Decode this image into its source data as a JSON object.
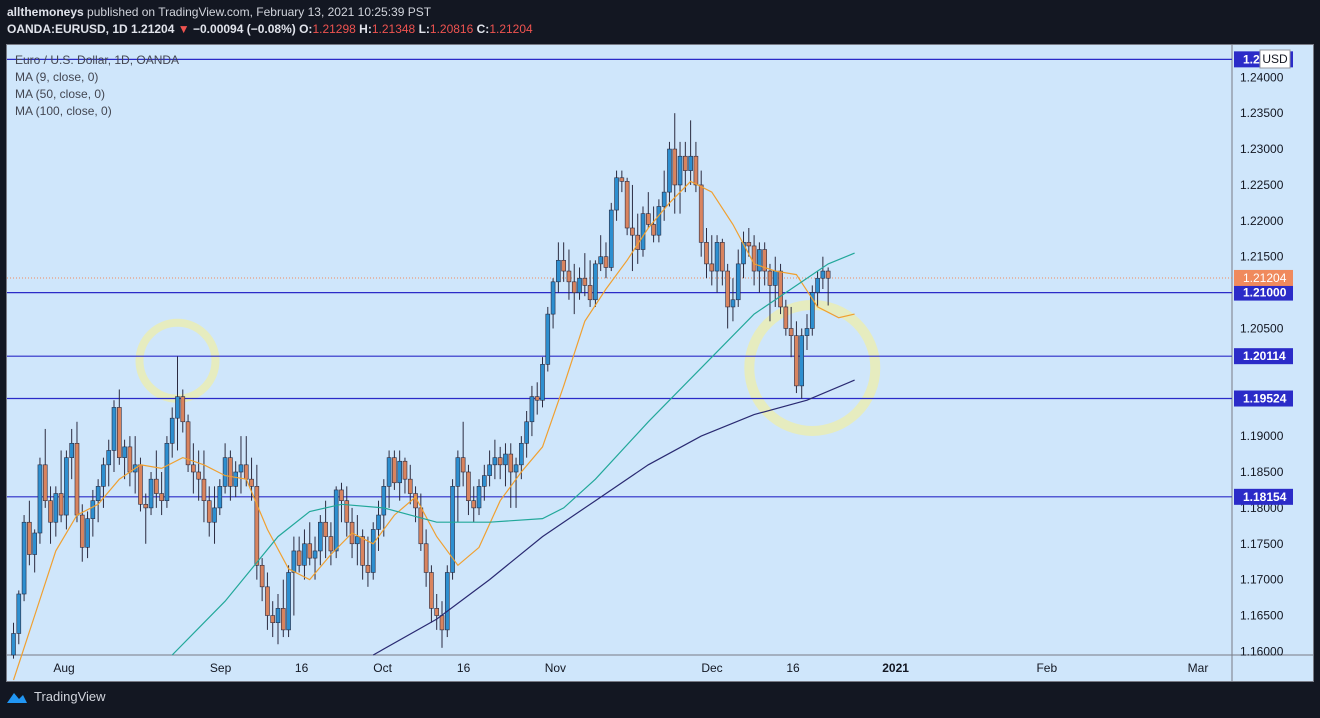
{
  "header": {
    "author": "allthemoneys",
    "published": "published on TradingView.com, February 13, 2021 10:25:39 PST",
    "symbol": "OANDA:EURUSD, 1D",
    "last": "1.21204",
    "change_arrow": "▼",
    "change": "−0.00094 (−0.08%)",
    "o_label": "O:",
    "o_value": "1.21298",
    "h_label": "H:",
    "h_value": "1.21348",
    "l_label": "L:",
    "l_value": "1.20816",
    "c_label": "C:",
    "c_value": "1.21204"
  },
  "legend": {
    "title": "Euro / U.S. Dollar, 1D, OANDA",
    "ma1": "MA (9, close, 0)",
    "ma2": "MA (50, close, 0)",
    "ma3": "MA (100, close, 0)"
  },
  "footer": {
    "brand": "TradingView"
  },
  "colors": {
    "background": "#131722",
    "plot_background": "#cfe6fb",
    "bull": "#2d8fd0",
    "bear": "#d9845f",
    "ma9": "#f0a030",
    "ma50": "#22a89a",
    "ma100": "#2a2a72",
    "level_line": "#2b2bc8",
    "highlight_circle": "#e6ecbf"
  },
  "chart_data": {
    "type": "candlestick",
    "title": "Euro / U.S. Dollar, 1D, OANDA",
    "currency_label": "USD",
    "ylim": [
      1.1595,
      1.2445
    ],
    "y_ticks": [
      "1.24000",
      "1.23500",
      "1.23000",
      "1.22500",
      "1.22000",
      "1.21500",
      "1.20500",
      "1.19000",
      "1.18500",
      "1.18000",
      "1.17500",
      "1.17000",
      "1.16500",
      "1.16000"
    ],
    "x_ticks": [
      {
        "label": "Aug",
        "date": "2020-08-03"
      },
      {
        "label": "Sep",
        "date": "2020-09-01"
      },
      {
        "label": "16",
        "date": "2020-09-16"
      },
      {
        "label": "Oct",
        "date": "2020-10-01"
      },
      {
        "label": "16",
        "date": "2020-10-16"
      },
      {
        "label": "Nov",
        "date": "2020-11-02"
      },
      {
        "label": "Dec",
        "date": "2020-12-01"
      },
      {
        "label": "16",
        "date": "2020-12-16"
      },
      {
        "label": "2021",
        "date": "2021-01-04"
      },
      {
        "label": "Feb",
        "date": "2021-02-01"
      },
      {
        "label": "Mar",
        "date": "2021-03-01"
      }
    ],
    "horizontal_levels": [
      {
        "value": 1.2425,
        "label": "1.2"
      },
      {
        "value": 1.21,
        "label": "1.21000"
      },
      {
        "value": 1.20114,
        "label": "1.20114"
      },
      {
        "value": 1.19524,
        "label": "1.19524"
      },
      {
        "value": 1.18154,
        "label": "1.18154"
      }
    ],
    "last_price": {
      "value": 1.21204,
      "label": "1.21204"
    },
    "candles": [
      [
        1.1595,
        1.164,
        1.159,
        1.1625
      ],
      [
        1.1625,
        1.1685,
        1.161,
        1.168
      ],
      [
        1.168,
        1.179,
        1.167,
        1.178
      ],
      [
        1.178,
        1.181,
        1.172,
        1.1735
      ],
      [
        1.1735,
        1.177,
        1.171,
        1.1765
      ],
      [
        1.1765,
        1.187,
        1.175,
        1.186
      ],
      [
        1.186,
        1.191,
        1.18,
        1.181
      ],
      [
        1.181,
        1.183,
        1.175,
        1.178
      ],
      [
        1.178,
        1.183,
        1.176,
        1.182
      ],
      [
        1.182,
        1.188,
        1.178,
        1.179
      ],
      [
        1.179,
        1.188,
        1.177,
        1.187
      ],
      [
        1.187,
        1.191,
        1.184,
        1.189
      ],
      [
        1.189,
        1.192,
        1.178,
        1.179
      ],
      [
        1.179,
        1.1805,
        1.1725,
        1.1745
      ],
      [
        1.1745,
        1.1795,
        1.173,
        1.1785
      ],
      [
        1.1785,
        1.1825,
        1.176,
        1.181
      ],
      [
        1.181,
        1.184,
        1.178,
        1.183
      ],
      [
        1.183,
        1.187,
        1.18,
        1.186
      ],
      [
        1.186,
        1.1895,
        1.183,
        1.188
      ],
      [
        1.188,
        1.195,
        1.185,
        1.194
      ],
      [
        1.194,
        1.1965,
        1.186,
        1.187
      ],
      [
        1.187,
        1.1895,
        1.184,
        1.1885
      ],
      [
        1.1885,
        1.19,
        1.183,
        1.185
      ],
      [
        1.185,
        1.19,
        1.182,
        1.186
      ],
      [
        1.186,
        1.187,
        1.1795,
        1.1805
      ],
      [
        1.1805,
        1.182,
        1.175,
        1.18
      ],
      [
        1.18,
        1.185,
        1.179,
        1.184
      ],
      [
        1.184,
        1.188,
        1.18,
        1.182
      ],
      [
        1.182,
        1.185,
        1.179,
        1.181
      ],
      [
        1.181,
        1.19,
        1.18,
        1.189
      ],
      [
        1.189,
        1.194,
        1.187,
        1.1925
      ],
      [
        1.1925,
        1.2011,
        1.188,
        1.1955
      ],
      [
        1.1955,
        1.1965,
        1.1905,
        1.192
      ],
      [
        1.192,
        1.193,
        1.185,
        1.186
      ],
      [
        1.186,
        1.189,
        1.182,
        1.185
      ],
      [
        1.185,
        1.188,
        1.181,
        1.184
      ],
      [
        1.184,
        1.188,
        1.178,
        1.181
      ],
      [
        1.181,
        1.183,
        1.176,
        1.178
      ],
      [
        1.178,
        1.183,
        1.175,
        1.18
      ],
      [
        1.18,
        1.184,
        1.179,
        1.183
      ],
      [
        1.183,
        1.189,
        1.182,
        1.187
      ],
      [
        1.187,
        1.188,
        1.181,
        1.183
      ],
      [
        1.183,
        1.1865,
        1.1815,
        1.185
      ],
      [
        1.185,
        1.19,
        1.182,
        1.186
      ],
      [
        1.186,
        1.19,
        1.183,
        1.184
      ],
      [
        1.184,
        1.187,
        1.181,
        1.183
      ],
      [
        1.183,
        1.186,
        1.17,
        1.172
      ],
      [
        1.172,
        1.173,
        1.167,
        1.169
      ],
      [
        1.169,
        1.171,
        1.163,
        1.165
      ],
      [
        1.165,
        1.167,
        1.162,
        1.164
      ],
      [
        1.164,
        1.168,
        1.161,
        1.166
      ],
      [
        1.166,
        1.17,
        1.162,
        1.163
      ],
      [
        1.163,
        1.172,
        1.162,
        1.171
      ],
      [
        1.171,
        1.176,
        1.165,
        1.174
      ],
      [
        1.174,
        1.176,
        1.171,
        1.172
      ],
      [
        1.172,
        1.177,
        1.17,
        1.175
      ],
      [
        1.175,
        1.178,
        1.172,
        1.173
      ],
      [
        1.173,
        1.176,
        1.17,
        1.174
      ],
      [
        1.174,
        1.179,
        1.172,
        1.178
      ],
      [
        1.178,
        1.181,
        1.173,
        1.176
      ],
      [
        1.176,
        1.178,
        1.172,
        1.174
      ],
      [
        1.174,
        1.183,
        1.173,
        1.1825
      ],
      [
        1.1825,
        1.1835,
        1.178,
        1.181
      ],
      [
        1.181,
        1.183,
        1.176,
        1.178
      ],
      [
        1.178,
        1.18,
        1.173,
        1.175
      ],
      [
        1.175,
        1.179,
        1.172,
        1.176
      ],
      [
        1.176,
        1.177,
        1.17,
        1.172
      ],
      [
        1.172,
        1.176,
        1.169,
        1.171
      ],
      [
        1.171,
        1.178,
        1.17,
        1.177
      ],
      [
        1.177,
        1.181,
        1.174,
        1.179
      ],
      [
        1.179,
        1.184,
        1.176,
        1.183
      ],
      [
        1.183,
        1.188,
        1.18,
        1.187
      ],
      [
        1.187,
        1.188,
        1.1825,
        1.1835
      ],
      [
        1.1835,
        1.188,
        1.181,
        1.1865
      ],
      [
        1.1865,
        1.187,
        1.182,
        1.184
      ],
      [
        1.184,
        1.186,
        1.1805,
        1.182
      ],
      [
        1.182,
        1.183,
        1.178,
        1.18
      ],
      [
        1.18,
        1.182,
        1.174,
        1.175
      ],
      [
        1.175,
        1.177,
        1.169,
        1.171
      ],
      [
        1.171,
        1.172,
        1.164,
        1.166
      ],
      [
        1.166,
        1.168,
        1.163,
        1.165
      ],
      [
        1.165,
        1.167,
        1.1605,
        1.163
      ],
      [
        1.163,
        1.172,
        1.162,
        1.171
      ],
      [
        1.171,
        1.184,
        1.17,
        1.183
      ],
      [
        1.183,
        1.188,
        1.178,
        1.187
      ],
      [
        1.187,
        1.192,
        1.183,
        1.185
      ],
      [
        1.185,
        1.186,
        1.179,
        1.181
      ],
      [
        1.181,
        1.183,
        1.178,
        1.18
      ],
      [
        1.18,
        1.184,
        1.179,
        1.183
      ],
      [
        1.183,
        1.186,
        1.181,
        1.1845
      ],
      [
        1.1845,
        1.188,
        1.183,
        1.186
      ],
      [
        1.186,
        1.1895,
        1.184,
        1.187
      ],
      [
        1.187,
        1.1885,
        1.184,
        1.186
      ],
      [
        1.186,
        1.189,
        1.183,
        1.1875
      ],
      [
        1.1875,
        1.189,
        1.18,
        1.185
      ],
      [
        1.185,
        1.187,
        1.18,
        1.186
      ],
      [
        1.186,
        1.19,
        1.184,
        1.189
      ],
      [
        1.189,
        1.1935,
        1.187,
        1.192
      ],
      [
        1.192,
        1.197,
        1.19,
        1.1955
      ],
      [
        1.1955,
        1.1975,
        1.193,
        1.195
      ],
      [
        1.195,
        1.201,
        1.194,
        1.2
      ],
      [
        1.2,
        1.208,
        1.199,
        1.207
      ],
      [
        1.207,
        1.212,
        1.205,
        1.2115
      ],
      [
        1.2115,
        1.217,
        1.21,
        1.2145
      ],
      [
        1.2145,
        1.217,
        1.2115,
        1.213
      ],
      [
        1.213,
        1.216,
        1.209,
        1.2115
      ],
      [
        1.2115,
        1.214,
        1.207,
        1.21
      ],
      [
        1.21,
        1.2135,
        1.209,
        1.212
      ],
      [
        1.212,
        1.2155,
        1.2095,
        1.211
      ],
      [
        1.211,
        1.2145,
        1.208,
        1.209
      ],
      [
        1.209,
        1.2145,
        1.208,
        1.214
      ],
      [
        1.214,
        1.218,
        1.213,
        1.215
      ],
      [
        1.215,
        1.217,
        1.212,
        1.2135
      ],
      [
        1.2135,
        1.2225,
        1.213,
        1.2215
      ],
      [
        1.2215,
        1.227,
        1.22,
        1.226
      ],
      [
        1.226,
        1.227,
        1.224,
        1.2255
      ],
      [
        1.2255,
        1.226,
        1.218,
        1.219
      ],
      [
        1.219,
        1.225,
        1.213,
        1.218
      ],
      [
        1.218,
        1.221,
        1.214,
        1.216
      ],
      [
        1.216,
        1.222,
        1.215,
        1.221
      ],
      [
        1.221,
        1.224,
        1.219,
        1.2195
      ],
      [
        1.2195,
        1.222,
        1.217,
        1.218
      ],
      [
        1.218,
        1.223,
        1.217,
        1.222
      ],
      [
        1.222,
        1.227,
        1.22,
        1.224
      ],
      [
        1.224,
        1.231,
        1.222,
        1.23
      ],
      [
        1.23,
        1.235,
        1.221,
        1.225
      ],
      [
        1.225,
        1.231,
        1.221,
        1.229
      ],
      [
        1.229,
        1.231,
        1.224,
        1.227
      ],
      [
        1.227,
        1.234,
        1.225,
        1.229
      ],
      [
        1.229,
        1.231,
        1.224,
        1.225
      ],
      [
        1.225,
        1.227,
        1.215,
        1.217
      ],
      [
        1.217,
        1.219,
        1.212,
        1.214
      ],
      [
        1.214,
        1.218,
        1.211,
        1.213
      ],
      [
        1.213,
        1.218,
        1.21,
        1.217
      ],
      [
        1.217,
        1.2175,
        1.211,
        1.213
      ],
      [
        1.213,
        1.214,
        1.205,
        1.208
      ],
      [
        1.208,
        1.212,
        1.206,
        1.209
      ],
      [
        1.209,
        1.216,
        1.208,
        1.214
      ],
      [
        1.214,
        1.2185,
        1.212,
        1.217
      ],
      [
        1.217,
        1.219,
        1.215,
        1.2165
      ],
      [
        1.2165,
        1.218,
        1.211,
        1.213
      ],
      [
        1.213,
        1.217,
        1.21,
        1.216
      ],
      [
        1.216,
        1.217,
        1.211,
        1.213
      ],
      [
        1.213,
        1.214,
        1.206,
        1.211
      ],
      [
        1.211,
        1.215,
        1.208,
        1.213
      ],
      [
        1.213,
        1.214,
        1.207,
        1.208
      ],
      [
        1.208,
        1.209,
        1.204,
        1.205
      ],
      [
        1.205,
        1.208,
        1.201,
        1.204
      ],
      [
        1.204,
        1.206,
        1.196,
        1.197
      ],
      [
        1.197,
        1.205,
        1.1952,
        1.204
      ],
      [
        1.204,
        1.207,
        1.202,
        1.205
      ],
      [
        1.205,
        1.211,
        1.204,
        1.21
      ],
      [
        1.21,
        1.213,
        1.208,
        1.212
      ],
      [
        1.212,
        1.215,
        1.2105,
        1.213
      ],
      [
        1.213,
        1.2135,
        1.2082,
        1.212
      ]
    ],
    "moving_averages": [
      {
        "name": "MA (9, close, 0)",
        "values": [
          [
            0,
            1.156
          ],
          [
            4,
            1.165
          ],
          [
            8,
            1.174
          ],
          [
            12,
            1.179
          ],
          [
            16,
            1.1805
          ],
          [
            20,
            1.184
          ],
          [
            24,
            1.186
          ],
          [
            28,
            1.1855
          ],
          [
            32,
            1.187
          ],
          [
            36,
            1.186
          ],
          [
            40,
            1.1845
          ],
          [
            44,
            1.184
          ],
          [
            48,
            1.177
          ],
          [
            52,
            1.1715
          ],
          [
            56,
            1.17
          ],
          [
            60,
            1.1735
          ],
          [
            64,
            1.1765
          ],
          [
            68,
            1.175
          ],
          [
            72,
            1.179
          ],
          [
            76,
            1.1815
          ],
          [
            80,
            1.176
          ],
          [
            84,
            1.172
          ],
          [
            88,
            1.1745
          ],
          [
            92,
            1.181
          ],
          [
            96,
            1.185
          ],
          [
            100,
            1.1885
          ],
          [
            104,
            1.197
          ],
          [
            108,
            1.206
          ],
          [
            112,
            1.2105
          ],
          [
            116,
            1.2145
          ],
          [
            120,
            1.219
          ],
          [
            124,
            1.2225
          ],
          [
            128,
            1.2255
          ],
          [
            132,
            1.224
          ],
          [
            136,
            1.2195
          ],
          [
            140,
            1.214
          ],
          [
            144,
            1.213
          ],
          [
            148,
            1.2125
          ],
          [
            152,
            1.208
          ],
          [
            156,
            1.2065
          ],
          [
            159,
            1.207
          ]
        ]
      },
      {
        "name": "MA (50, close, 0)",
        "values": [
          [
            30,
            1.1595
          ],
          [
            40,
            1.167
          ],
          [
            50,
            1.176
          ],
          [
            56,
            1.1795
          ],
          [
            62,
            1.1805
          ],
          [
            70,
            1.18
          ],
          [
            80,
            1.178
          ],
          [
            90,
            1.178
          ],
          [
            100,
            1.1785
          ],
          [
            104,
            1.18
          ],
          [
            110,
            1.184
          ],
          [
            120,
            1.192
          ],
          [
            130,
            1.1995
          ],
          [
            140,
            1.207
          ],
          [
            146,
            1.21
          ],
          [
            150,
            1.212
          ],
          [
            154,
            1.214
          ],
          [
            159,
            1.2155
          ]
        ]
      },
      {
        "name": "MA (100, close, 0)",
        "values": [
          [
            68,
            1.1595
          ],
          [
            80,
            1.1645
          ],
          [
            90,
            1.17
          ],
          [
            100,
            1.176
          ],
          [
            110,
            1.181
          ],
          [
            120,
            1.186
          ],
          [
            130,
            1.19
          ],
          [
            140,
            1.193
          ],
          [
            150,
            1.195
          ],
          [
            159,
            1.1978
          ]
        ]
      }
    ],
    "annotations": [
      {
        "type": "circle",
        "at_candle": 31,
        "price": 1.2005
      },
      {
        "type": "circle",
        "at_candle": 151,
        "price": 1.1995
      }
    ],
    "grid": false,
    "legend_position": "top-left"
  }
}
